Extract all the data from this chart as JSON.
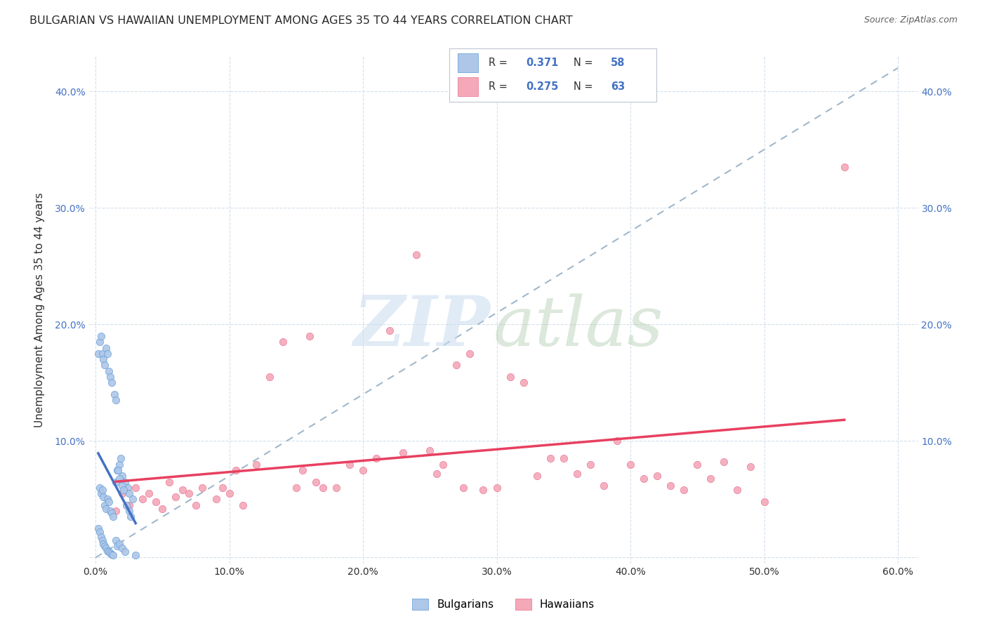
{
  "title": "BULGARIAN VS HAWAIIAN UNEMPLOYMENT AMONG AGES 35 TO 44 YEARS CORRELATION CHART",
  "source": "Source: ZipAtlas.com",
  "ylabel": "Unemployment Among Ages 35 to 44 years",
  "xlim": [
    -0.005,
    0.615
  ],
  "ylim": [
    -0.005,
    0.43
  ],
  "xticks": [
    0.0,
    0.1,
    0.2,
    0.3,
    0.4,
    0.5,
    0.6
  ],
  "yticks": [
    0.0,
    0.1,
    0.2,
    0.3,
    0.4
  ],
  "xticklabels": [
    "0.0%",
    "10.0%",
    "20.0%",
    "30.0%",
    "40.0%",
    "50.0%",
    "60.0%"
  ],
  "yticklabels": [
    "",
    "10.0%",
    "20.0%",
    "30.0%",
    "40.0%"
  ],
  "bulgarian_R": 0.371,
  "bulgarian_N": 58,
  "hawaiian_R": 0.275,
  "hawaiian_N": 63,
  "bulgarian_color": "#aec6e8",
  "hawaiian_color": "#f4a8b8",
  "bulgarian_edge_color": "#5b9bd5",
  "hawaiian_edge_color": "#e87090",
  "bulgarian_trend_color": "#4472c4",
  "hawaiian_trend_color": "#e84060",
  "ref_line_color": "#a0b8cc",
  "bg_color": "#ffffff",
  "grid_color": "#d4e0ec",
  "title_color": "#2a2a2a",
  "bulgarian_x": [
    0.003,
    0.004,
    0.005,
    0.006,
    0.007,
    0.008,
    0.009,
    0.01,
    0.011,
    0.012,
    0.013,
    0.015,
    0.016,
    0.018,
    0.019,
    0.02,
    0.022,
    0.024,
    0.025,
    0.028,
    0.002,
    0.003,
    0.004,
    0.005,
    0.006,
    0.007,
    0.008,
    0.009,
    0.01,
    0.011,
    0.012,
    0.014,
    0.015,
    0.017,
    0.018,
    0.02,
    0.021,
    0.023,
    0.025,
    0.026,
    0.002,
    0.003,
    0.004,
    0.005,
    0.006,
    0.007,
    0.008,
    0.009,
    0.01,
    0.011,
    0.012,
    0.013,
    0.015,
    0.016,
    0.018,
    0.02,
    0.022,
    0.03
  ],
  "bulgarian_y": [
    0.06,
    0.055,
    0.058,
    0.052,
    0.045,
    0.042,
    0.05,
    0.048,
    0.04,
    0.038,
    0.035,
    0.065,
    0.075,
    0.08,
    0.085,
    0.07,
    0.065,
    0.06,
    0.055,
    0.05,
    0.175,
    0.185,
    0.19,
    0.175,
    0.17,
    0.165,
    0.18,
    0.175,
    0.16,
    0.155,
    0.15,
    0.14,
    0.135,
    0.075,
    0.068,
    0.062,
    0.058,
    0.045,
    0.04,
    0.035,
    0.025,
    0.022,
    0.018,
    0.015,
    0.012,
    0.01,
    0.008,
    0.006,
    0.005,
    0.004,
    0.003,
    0.002,
    0.015,
    0.01,
    0.012,
    0.008,
    0.005,
    0.002
  ],
  "hawaiian_x": [
    0.015,
    0.02,
    0.025,
    0.03,
    0.035,
    0.04,
    0.045,
    0.05,
    0.055,
    0.06,
    0.065,
    0.07,
    0.075,
    0.08,
    0.09,
    0.095,
    0.1,
    0.105,
    0.11,
    0.12,
    0.13,
    0.14,
    0.15,
    0.155,
    0.16,
    0.165,
    0.17,
    0.18,
    0.19,
    0.2,
    0.21,
    0.22,
    0.23,
    0.24,
    0.25,
    0.255,
    0.26,
    0.27,
    0.275,
    0.28,
    0.29,
    0.3,
    0.31,
    0.32,
    0.33,
    0.34,
    0.35,
    0.36,
    0.37,
    0.38,
    0.39,
    0.4,
    0.41,
    0.42,
    0.43,
    0.44,
    0.45,
    0.46,
    0.47,
    0.48,
    0.49,
    0.5,
    0.56
  ],
  "hawaiian_y": [
    0.04,
    0.055,
    0.045,
    0.06,
    0.05,
    0.055,
    0.048,
    0.042,
    0.065,
    0.052,
    0.058,
    0.055,
    0.045,
    0.06,
    0.05,
    0.06,
    0.055,
    0.075,
    0.045,
    0.08,
    0.155,
    0.185,
    0.06,
    0.075,
    0.19,
    0.065,
    0.06,
    0.06,
    0.08,
    0.075,
    0.085,
    0.195,
    0.09,
    0.26,
    0.092,
    0.072,
    0.08,
    0.165,
    0.06,
    0.175,
    0.058,
    0.06,
    0.155,
    0.15,
    0.07,
    0.085,
    0.085,
    0.072,
    0.08,
    0.062,
    0.1,
    0.08,
    0.068,
    0.07,
    0.062,
    0.058,
    0.08,
    0.068,
    0.082,
    0.058,
    0.078,
    0.048,
    0.335
  ]
}
